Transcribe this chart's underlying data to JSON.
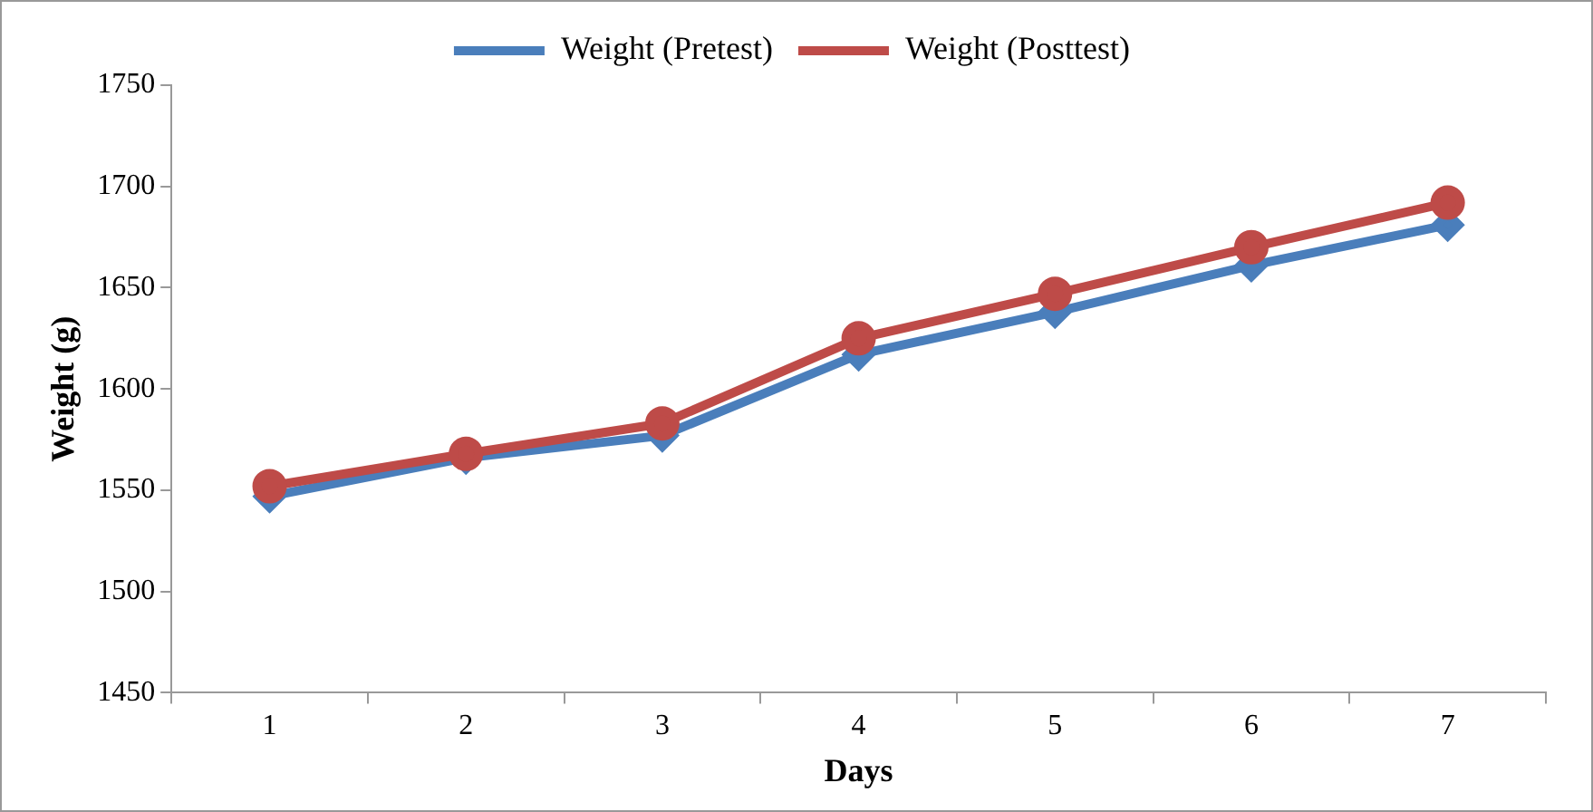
{
  "chart_data": {
    "type": "line",
    "xlabel": "Days",
    "ylabel": "Weight (g)",
    "categories": [
      "1",
      "2",
      "3",
      "4",
      "5",
      "6",
      "7"
    ],
    "series": [
      {
        "name": "Weight (Pretest)",
        "color": "#4a7ebb",
        "marker": "diamond",
        "values": [
          1547,
          1566,
          1577,
          1617,
          1638,
          1661,
          1681
        ]
      },
      {
        "name": "Weight (Posttest)",
        "color": "#be4b48",
        "marker": "circle",
        "values": [
          1552,
          1568,
          1583,
          1625,
          1647,
          1670,
          1692
        ]
      }
    ],
    "ylim": [
      1450,
      1750
    ],
    "yticks": [
      1450,
      1500,
      1550,
      1600,
      1650,
      1700,
      1750
    ],
    "grid": false,
    "legend": "top",
    "line_style": "solid"
  }
}
